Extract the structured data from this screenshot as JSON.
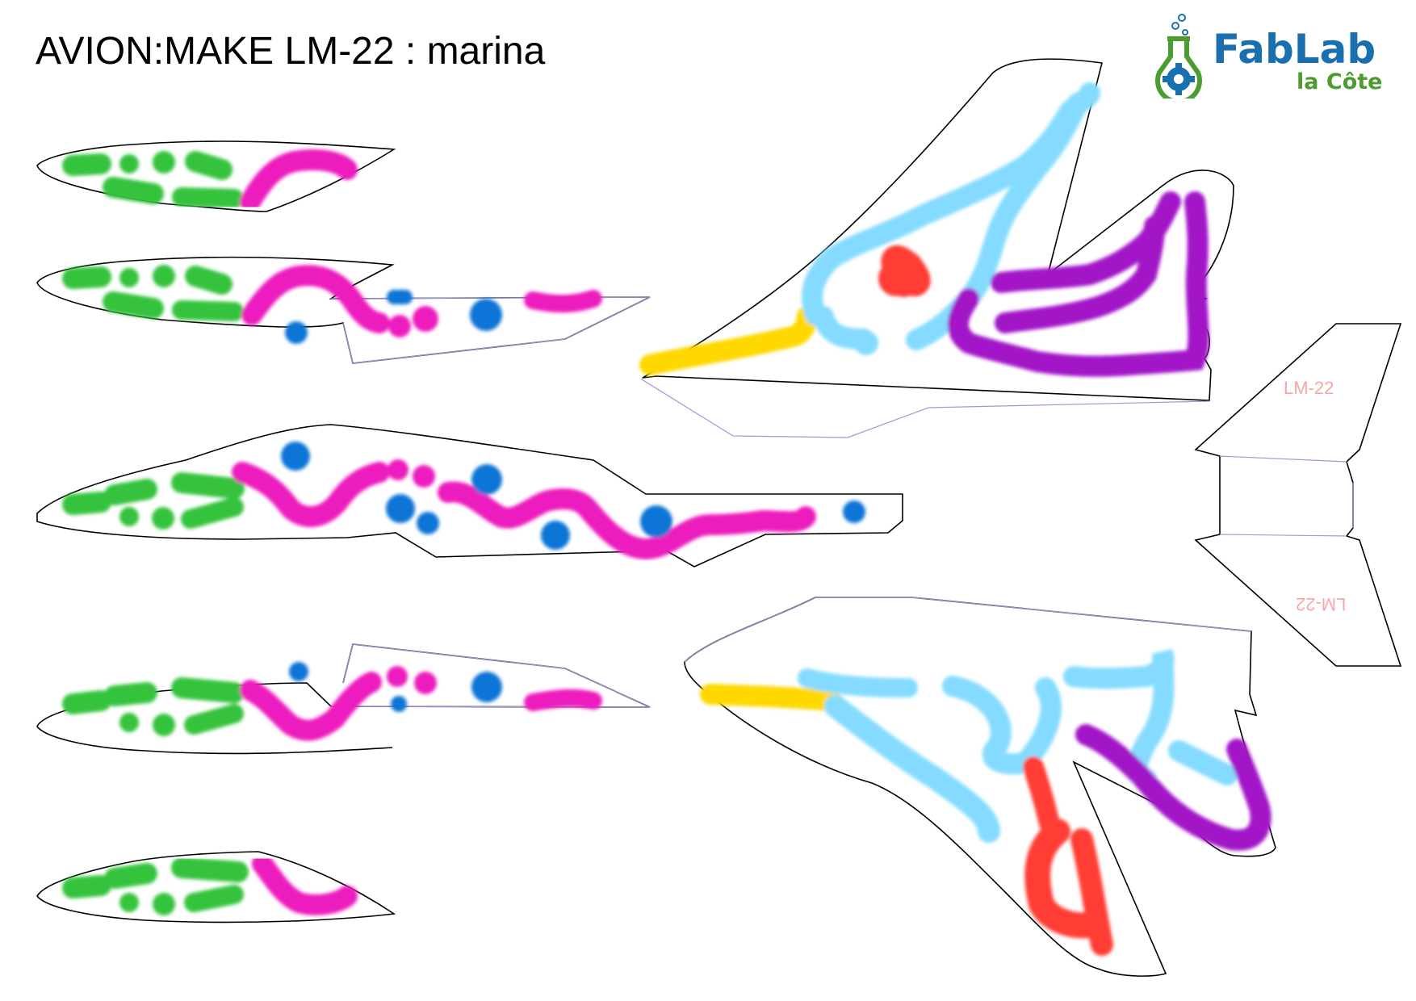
{
  "title": "AVION:MAKE LM-22 : marina",
  "logo": {
    "name": "FabLab",
    "subtitle": "la Côte",
    "mark_icon": "flask-gear-icon"
  },
  "tail_labels": {
    "upper": "LM-22",
    "lower": "LM-22"
  },
  "colors": {
    "green": "#34c33c",
    "magenta": "#ec1fbe",
    "blue": "#0b75d6",
    "light_blue": "#84dbff",
    "purple": "#a215c7",
    "yellow": "#ffd800",
    "red": "#ff3d34",
    "outline": "#000000",
    "cut_line": "#9a9ad8",
    "label_pink": "#f7a7a7",
    "logo_blue": "#1a6fae",
    "logo_green": "#4c9d2f"
  }
}
